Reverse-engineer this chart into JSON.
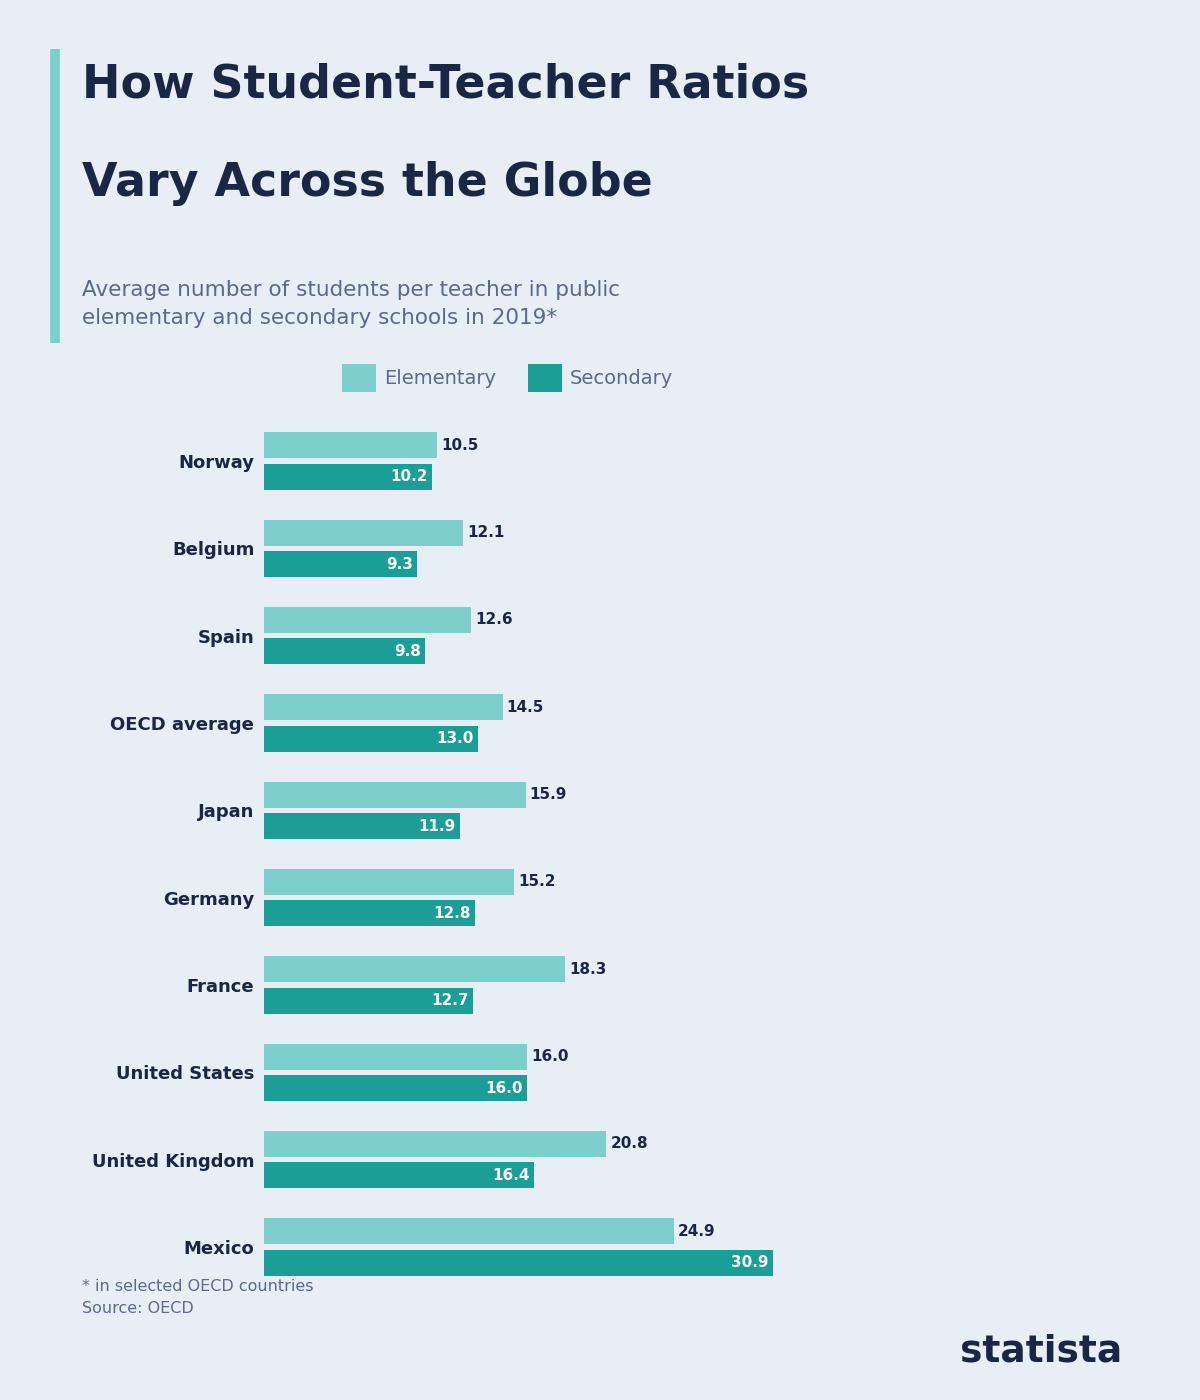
{
  "title_line1": "How Student-Teacher Ratios",
  "title_line2": "Vary Across the Globe",
  "subtitle": "Average number of students per teacher in public\nelementary and secondary schools in 2019*",
  "footnote": "* in selected OECD countries\nSource: OECD",
  "legend_elementary": "Elementary",
  "legend_secondary": "Secondary",
  "background_color": "#e8eef5",
  "title_color": "#1a2744",
  "subtitle_color": "#5a6a8a",
  "footnote_color": "#5a6a8a",
  "accent_line_color": "#7dcfcc",
  "elementary_color": "#7dcfcc",
  "secondary_color": "#1a9e96",
  "label_color_elementary": "#1a2744",
  "label_color_secondary": "#ffffff",
  "country_label_color": "#1a2744",
  "countries": [
    "Norway",
    "Belgium",
    "Spain",
    "OECD average",
    "Japan",
    "Germany",
    "France",
    "United States",
    "United Kingdom",
    "Mexico"
  ],
  "elementary": [
    10.5,
    12.1,
    12.6,
    14.5,
    15.9,
    15.2,
    18.3,
    16.0,
    20.8,
    24.9
  ],
  "secondary": [
    10.2,
    9.3,
    9.8,
    13.0,
    11.9,
    12.8,
    12.7,
    16.0,
    16.4,
    30.9
  ],
  "xlim": [
    0,
    35
  ]
}
